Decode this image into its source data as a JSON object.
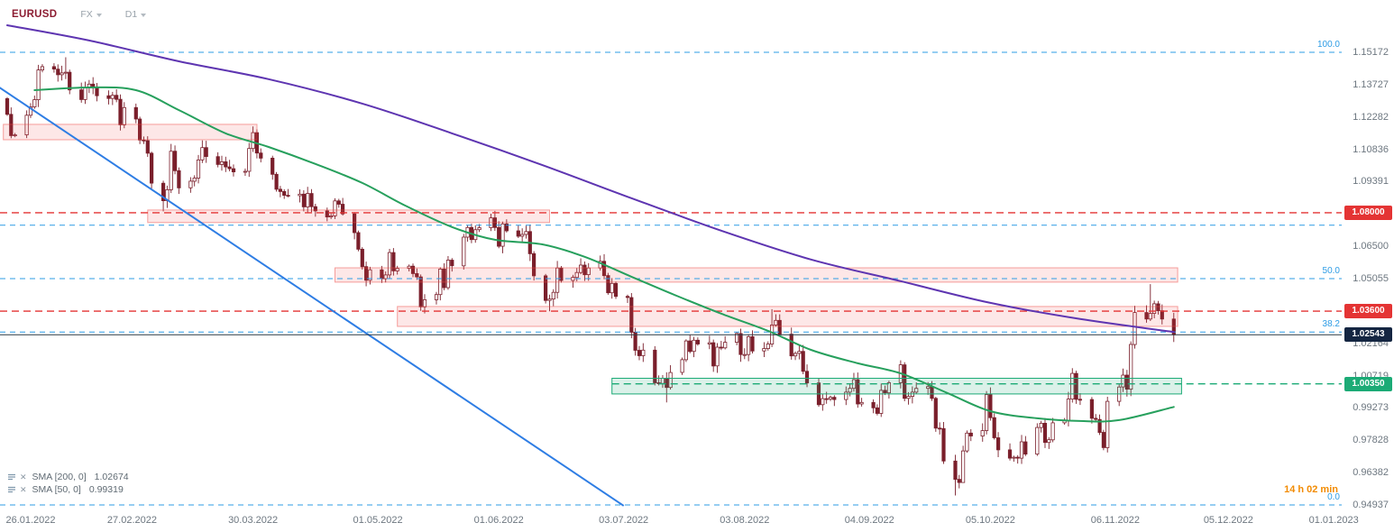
{
  "header": {
    "symbol": "EURUSD",
    "market_label": "FX",
    "timeframe_label": "D1"
  },
  "legend": {
    "rows": [
      {
        "label": "SMA [200, 0]",
        "value": "1.02674"
      },
      {
        "label": "SMA [50, 0]",
        "value": "0.99319"
      }
    ]
  },
  "countdown": "14 h 02 min",
  "price_axis": {
    "labels": [
      "1.15172",
      "1.13727",
      "1.12282",
      "1.10836",
      "1.09391",
      "1.07946",
      "1.06500",
      "1.05055",
      "1.03609",
      "1.02164",
      "1.00719",
      "0.99273",
      "0.97828",
      "0.96382",
      "0.94937"
    ]
  },
  "time_axis": {
    "labels": [
      {
        "text": "26.01.2022",
        "date": "2022-01-26"
      },
      {
        "text": "27.02.2022",
        "date": "2022-02-27"
      },
      {
        "text": "30.03.2022",
        "date": "2022-03-30"
      },
      {
        "text": "01.05.2022",
        "date": "2022-05-01"
      },
      {
        "text": "01.06.2022",
        "date": "2022-06-01"
      },
      {
        "text": "03.07.2022",
        "date": "2022-07-03"
      },
      {
        "text": "03.08.2022",
        "date": "2022-08-03"
      },
      {
        "text": "04.09.2022",
        "date": "2022-09-04"
      },
      {
        "text": "05.10.2022",
        "date": "2022-10-05"
      },
      {
        "text": "06.11.2022",
        "date": "2022-11-06"
      },
      {
        "text": "05.12.2022",
        "date": "2022-12-05"
      },
      {
        "text": "01.01.2023",
        "date": "2023-01-01"
      }
    ]
  },
  "current_price": {
    "label": "1.02543",
    "value": 1.02543
  },
  "levels": [
    {
      "type": "resistance",
      "label": "1.08000",
      "price": 1.08,
      "color": "#e43434"
    },
    {
      "type": "resistance",
      "label": "1.03600",
      "price": 1.036,
      "color": "#e43434"
    },
    {
      "type": "support",
      "label": "1.00350",
      "price": 1.0035,
      "color": "#1cab76",
      "start_date": "2022-06-30"
    }
  ],
  "fibonacci": {
    "levels": [
      {
        "label": "100.0",
        "price": 1.15172,
        "show_label": true
      },
      {
        "label": "61.8",
        "price": 1.07442,
        "show_label": false
      },
      {
        "label": "50.0",
        "price": 1.05055,
        "show_label": true
      },
      {
        "label": "38.2",
        "price": 1.02667,
        "show_label": true
      },
      {
        "label": "0.0",
        "price": 0.94937,
        "show_label": true
      }
    ]
  },
  "zones": [
    {
      "kind": "supply",
      "price_top": 1.1195,
      "price_bottom": 1.1126,
      "start_date": "2022-01-25",
      "end_date": "2022-03-31"
    },
    {
      "kind": "supply",
      "price_top": 1.0812,
      "price_bottom": 1.0756,
      "start_date": "2022-03-03",
      "end_date": "2022-06-14"
    },
    {
      "kind": "supply",
      "price_top": 1.0554,
      "price_bottom": 1.049,
      "start_date": "2022-04-20",
      "end_date": "2022-11-22"
    },
    {
      "kind": "supply",
      "price_top": 1.0381,
      "price_bottom": 1.0292,
      "start_date": "2022-05-06",
      "end_date": "2022-11-22"
    },
    {
      "kind": "demand",
      "price_top": 1.006,
      "price_bottom": 0.999,
      "start_date": "2022-06-30",
      "end_date": "2022-11-23"
    }
  ],
  "chart_data": {
    "type": "candlestick",
    "symbol": "EURUSD",
    "timeframe": "D1",
    "start_date": "2022-01-26",
    "first_open": 1.131,
    "closes": [
      1.124,
      1.1145,
      1.1148,
      1.1236,
      1.1273,
      1.1305,
      1.1438,
      1.1453,
      1.1442,
      1.1417,
      1.1425,
      1.1428,
      1.1349,
      1.1306,
      1.1358,
      1.1375,
      1.1362,
      1.1323,
      1.1311,
      1.1325,
      1.1307,
      1.1193,
      1.127,
      1.1219,
      1.1125,
      1.1122,
      1.1066,
      1.0932,
      1.0854,
      1.0903,
      1.1075,
      1.0988,
      1.0911,
      1.0941,
      1.0955,
      1.1036,
      1.1091,
      1.1051,
      1.1016,
      1.1028,
      1.1005,
      1.0997,
      1.0983,
      1.0985,
      1.1087,
      1.1158,
      1.1067,
      1.1044,
      1.0972,
      1.0905,
      1.0895,
      1.0878,
      1.0876,
      1.0883,
      1.0826,
      1.0886,
      1.0827,
      1.0808,
      1.0781,
      1.0786,
      1.0853,
      1.0838,
      1.0795,
      1.0711,
      1.0637,
      1.0559,
      1.0498,
      1.0545,
      1.0505,
      1.0522,
      1.0622,
      1.054,
      1.0551,
      1.0561,
      1.0528,
      1.0513,
      1.0379,
      1.0411,
      1.0434,
      1.0548,
      1.0465,
      1.0588,
      1.0563,
      1.0691,
      1.0734,
      1.068,
      1.0724,
      1.0733,
      1.0777,
      1.0734,
      1.065,
      1.075,
      1.0719,
      1.0695,
      1.0703,
      1.0716,
      1.0617,
      1.0518,
      1.0408,
      1.0414,
      1.0444,
      1.0553,
      1.0497,
      1.0511,
      1.0533,
      1.0566,
      1.0523,
      1.0553,
      1.0583,
      1.0519,
      1.0442,
      1.0484,
      1.0426,
      1.0421,
      1.0266,
      1.0185,
      1.0161,
      1.0186,
      1.004,
      1.0037,
      1.006,
      1.0019,
      1.0086,
      1.0143,
      1.0227,
      1.018,
      1.023,
      1.0213,
      1.0219,
      1.0115,
      1.0199,
      1.0196,
      1.0221,
      1.026,
      1.0166,
      1.0166,
      1.0246,
      1.0182,
      1.0193,
      1.0213,
      1.0298,
      1.0319,
      1.0257,
      1.016,
      1.0171,
      1.018,
      1.0091,
      1.0039,
      0.9942,
      0.9969,
      0.9967,
      0.9975,
      0.9965,
      0.9998,
      1.0015,
      1.0054,
      0.9945,
      0.9952,
      0.9928,
      0.9903,
      1.0006,
      0.9995,
      1.004,
      1.012,
      0.997,
      0.9979,
      0.9998,
      1.0015,
      1.0023,
      0.997,
      0.9837,
      0.9835,
      0.969,
      0.9608,
      0.9594,
      0.9735,
      0.9815,
      0.9802,
      0.9826,
      0.9987,
      0.9884,
      0.9794,
      0.974,
      0.9703,
      0.9707,
      0.9703,
      0.9776,
      0.9721,
      0.984,
      0.9859,
      0.9773,
      0.9785,
      0.9861,
      0.9873,
      0.9967,
      1.0082,
      0.9966,
      0.9965,
      0.9881,
      0.9876,
      0.9818,
      0.975,
      0.9957,
      1.0021,
      1.0074,
      1.0011,
      1.0211,
      1.0354,
      1.0325,
      1.035,
      1.0393,
      1.0362,
      1.0325,
      1.02543
    ],
    "wick_overrides": {
      "2022-02-10": {
        "h": 1.1495
      },
      "2022-03-07": {
        "l": 1.0806
      },
      "2022-05-13": {
        "l": 1.035
      },
      "2022-06-14": {
        "l": 1.0359
      },
      "2022-07-14": {
        "l": 0.9952
      },
      "2022-08-10": {
        "h": 1.0369
      },
      "2022-09-26": {
        "l": 0.9536
      },
      "2022-09-28": {
        "l": 0.9634
      },
      "2022-10-27": {
        "h": 1.0094
      },
      "2022-11-15": {
        "h": 1.0481
      }
    },
    "y_axis": {
      "min": 0.94937,
      "max": 1.15172
    },
    "x_axis": {
      "start": "2022-01-26",
      "end": "2023-01-01"
    },
    "indicators": [
      {
        "name": "SMA 200",
        "color": "#5e35b1",
        "points": [
          [
            0,
            1.1638
          ],
          [
            21,
            1.157
          ],
          [
            44,
            1.1477
          ],
          [
            67,
            1.1397
          ],
          [
            91,
            1.1288
          ],
          [
            114,
            1.1155
          ],
          [
            137,
            1.1014
          ],
          [
            160,
            1.0865
          ],
          [
            183,
            1.072
          ],
          [
            206,
            1.0591
          ],
          [
            229,
            1.0494
          ],
          [
            252,
            1.0397
          ],
          [
            275,
            1.0325
          ],
          [
            299,
            1.0267
          ]
        ]
      },
      {
        "name": "SMA 50",
        "color": "#27a05d",
        "points": [
          [
            7,
            1.1348
          ],
          [
            21,
            1.136
          ],
          [
            33,
            1.1348
          ],
          [
            44,
            1.1259
          ],
          [
            56,
            1.1155
          ],
          [
            67,
            1.1094
          ],
          [
            79,
            1.1018
          ],
          [
            91,
            1.0933
          ],
          [
            102,
            1.0832
          ],
          [
            114,
            1.0736
          ],
          [
            125,
            1.0679
          ],
          [
            137,
            1.0659
          ],
          [
            148,
            1.0603
          ],
          [
            160,
            1.0514
          ],
          [
            171,
            1.0433
          ],
          [
            183,
            1.0349
          ],
          [
            195,
            1.0272
          ],
          [
            206,
            1.0187
          ],
          [
            218,
            1.0127
          ],
          [
            229,
            1.0082
          ],
          [
            241,
            0.9994
          ],
          [
            252,
            0.9913
          ],
          [
            264,
            0.9881
          ],
          [
            275,
            0.9869
          ],
          [
            285,
            0.9873
          ],
          [
            299,
            0.9932
          ]
        ]
      }
    ],
    "trendline": {
      "color": "#2e7de4",
      "points": [
        [
          -2,
          1.136
        ],
        [
          158,
          0.949
        ]
      ]
    }
  },
  "colors": {
    "candle": "#7a1f2b",
    "candle_up_fill": "#ffffff",
    "candle_down_fill": "#7a1f2b",
    "fib": "#2d9ce5",
    "supply_zone_fill": "rgba(238,72,66,0.13)",
    "supply_zone_border": "rgba(238,72,66,0.5)",
    "demand_zone_fill": "rgba(28,171,118,0.16)",
    "demand_zone_border": "#1cab76",
    "current_price_line": "#2f3a44",
    "current_price_badge": "#152642",
    "countdown": "#f28b02"
  }
}
